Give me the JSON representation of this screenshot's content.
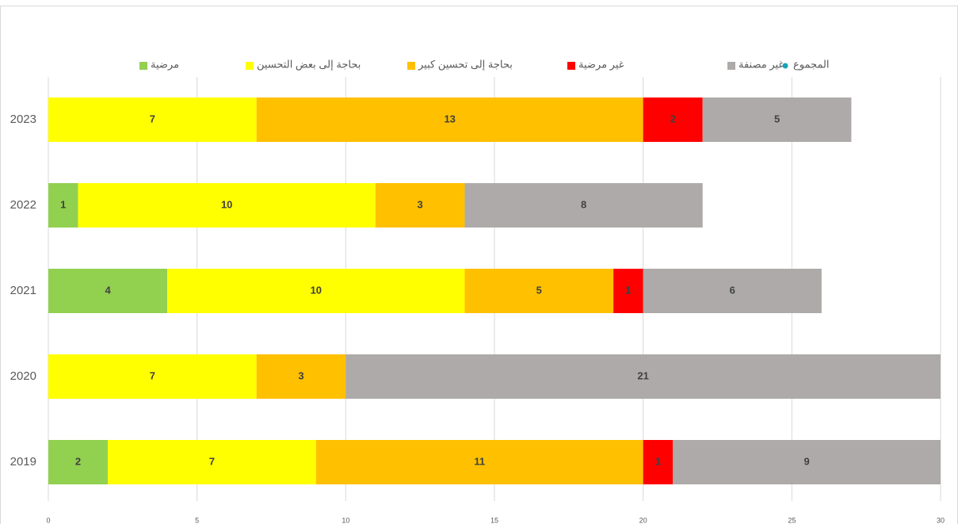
{
  "chart_data": {
    "type": "stacked-barh",
    "categories": [
      "2023",
      "2022",
      "2021",
      "2020",
      "2019"
    ],
    "series": [
      {
        "name": "مرضية",
        "color": "#92d050",
        "values": [
          null,
          1,
          4,
          null,
          2
        ]
      },
      {
        "name": "بحاجة إلى بعض التحسين",
        "color": "#ffff00",
        "values": [
          7,
          10,
          10,
          7,
          7
        ]
      },
      {
        "name": "بحاجة إلى تحسين كبير",
        "color": "#ffc000",
        "values": [
          13,
          3,
          5,
          3,
          11
        ]
      },
      {
        "name": "غير مرضية",
        "color": "#ff0000",
        "values": [
          2,
          null,
          1,
          null,
          1
        ]
      },
      {
        "name": "غير مصنفة",
        "color": "#aeaaaa",
        "values": [
          5,
          8,
          6,
          21,
          9
        ]
      },
      {
        "name": "المجموع",
        "color": "#17a2b8",
        "marker": "dot",
        "values": [
          null,
          null,
          null,
          null,
          null
        ]
      }
    ],
    "xlim": [
      0,
      30
    ],
    "xticks": [
      0,
      5,
      10,
      15,
      20,
      25,
      30
    ],
    "grid": true
  }
}
